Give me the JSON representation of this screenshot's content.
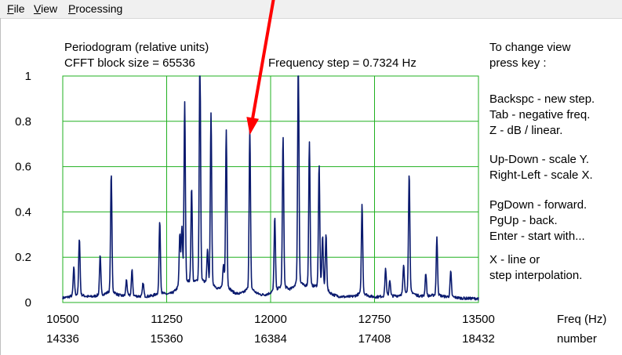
{
  "menu": {
    "file": {
      "first": "F",
      "rest": "ile"
    },
    "view": {
      "first": "V",
      "rest": "iew"
    },
    "processing": {
      "first": "P",
      "rest": "rocessing"
    }
  },
  "header": {
    "title": "Periodogram  (relative units)",
    "block_size": "CFFT block size =  65536",
    "freq_step": "Frequency step =  0.7324  Hz"
  },
  "help": {
    "lines": [
      "To change view",
      "press key :",
      "Backspc - new step.",
      "Tab - negative freq.",
      "Z   -   dB / linear.",
      "Up-Down  -  scale Y.",
      "Right-Left - scale X.",
      "PgDown  -  forward.",
      "PgUp   -  back.",
      "Enter  -  start with...",
      "X   -    line or",
      "step interpolation."
    ]
  },
  "chart_data": {
    "type": "line",
    "ylim": [
      0,
      1
    ],
    "xlim": [
      10500,
      13500
    ],
    "y_ticks": [
      "0",
      "0.2",
      "0.4",
      "0.6",
      "0.8",
      "1"
    ],
    "x_ticks": [
      "10500",
      "11250",
      "12000",
      "12750",
      "13500"
    ],
    "x_ticks_bin": [
      "14336",
      "15360",
      "16384",
      "17408",
      "18432"
    ],
    "xlabel": "Freq (Hz)",
    "xlabel_bin": "number",
    "grid": true,
    "colors": {
      "line": "#0a1a6e",
      "grid": "#20b020",
      "arrow": "#ff0000"
    },
    "baseline": 0.01,
    "peaks": [
      [
        10580,
        0.12
      ],
      [
        10620,
        0.25
      ],
      [
        10770,
        0.17
      ],
      [
        10850,
        0.52
      ],
      [
        10960,
        0.07
      ],
      [
        11000,
        0.11
      ],
      [
        11080,
        0.06
      ],
      [
        11200,
        0.32
      ],
      [
        11345,
        0.22
      ],
      [
        11360,
        0.24
      ],
      [
        11380,
        0.78
      ],
      [
        11430,
        0.42
      ],
      [
        11490,
        1.0
      ],
      [
        11545,
        0.14
      ],
      [
        11570,
        0.75
      ],
      [
        11660,
        0.1
      ],
      [
        11680,
        0.69
      ],
      [
        11850,
        0.7
      ],
      [
        12030,
        0.32
      ],
      [
        12090,
        0.66
      ],
      [
        12200,
        1.0
      ],
      [
        12280,
        0.63
      ],
      [
        12350,
        0.53
      ],
      [
        12375,
        0.22
      ],
      [
        12400,
        0.24
      ],
      [
        12660,
        0.39
      ],
      [
        12830,
        0.12
      ],
      [
        12860,
        0.07
      ],
      [
        12960,
        0.12
      ],
      [
        13000,
        0.52
      ],
      [
        13120,
        0.1
      ],
      [
        13200,
        0.25
      ],
      [
        13300,
        0.11
      ]
    ],
    "arrow": {
      "from_x": 12020,
      "from_y": 1.35,
      "to_x": 11850,
      "to_y": 0.74
    }
  }
}
